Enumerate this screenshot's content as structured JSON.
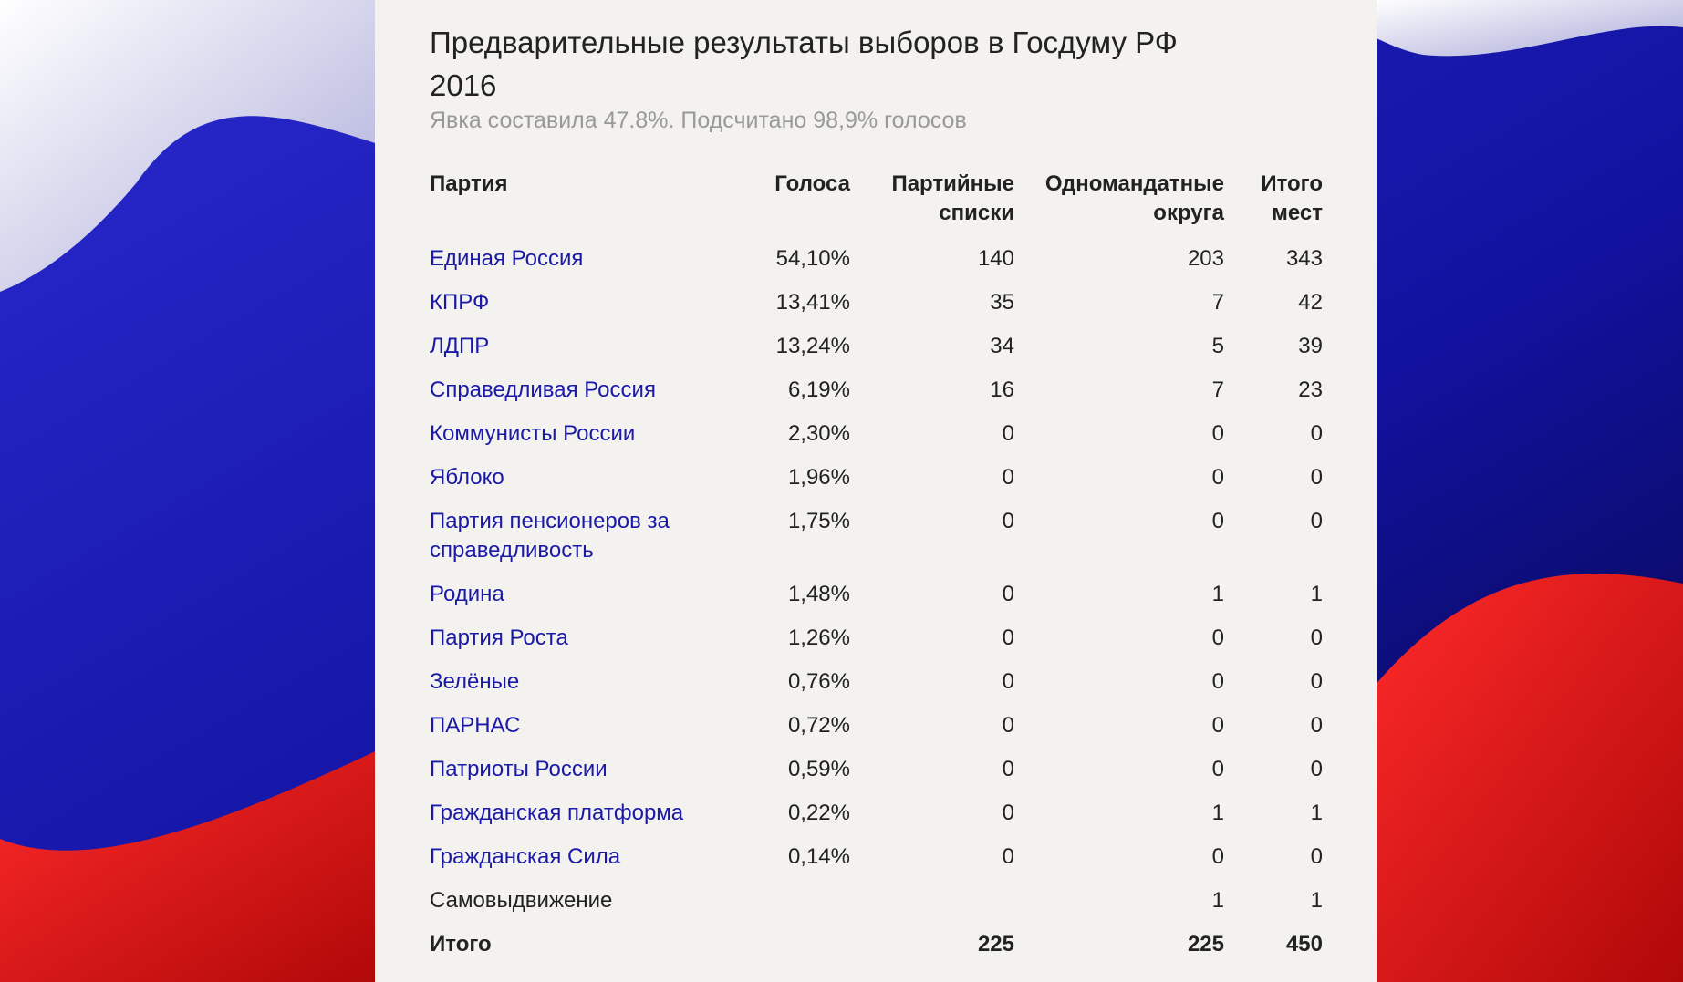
{
  "header": {
    "title": "Предварительные результаты выборов в Госдуму РФ 2016",
    "subtitle": "Явка составила 47.8%. Подсчитано 98,9% голосов"
  },
  "table": {
    "columns": [
      "Партия",
      "Голоса",
      "Партийные списки",
      "Одномандатные округа",
      "Итого мест"
    ],
    "rows": [
      [
        "Единая Россия",
        "54,10%",
        140,
        203,
        343
      ],
      [
        "КПРФ",
        "13,41%",
        35,
        7,
        42
      ],
      [
        "ЛДПР",
        "13,24%",
        34,
        5,
        39
      ],
      [
        "Справедливая Россия",
        "6,19%",
        16,
        7,
        23
      ],
      [
        "Коммунисты России",
        "2,30%",
        0,
        0,
        0
      ],
      [
        "Яблоко",
        "1,96%",
        0,
        0,
        0
      ],
      [
        "Партия пенсионеров за справедливость",
        "1,75%",
        0,
        0,
        0
      ],
      [
        "Родина",
        "1,48%",
        0,
        1,
        1
      ],
      [
        "Партия Роста",
        "1,26%",
        0,
        0,
        0
      ],
      [
        "Зелёные",
        "0,76%",
        0,
        0,
        0
      ],
      [
        "ПАРНАС",
        "0,72%",
        0,
        0,
        0
      ],
      [
        "Патриоты России",
        "0,59%",
        0,
        0,
        0
      ],
      [
        "Гражданская платформа",
        "0,22%",
        0,
        1,
        1
      ],
      [
        "Гражданская Сила",
        "0,14%",
        0,
        0,
        0
      ],
      [
        "Самовыдвижение",
        null,
        null,
        1,
        1
      ]
    ],
    "total": [
      "Итого",
      null,
      225,
      225,
      450
    ]
  }
}
